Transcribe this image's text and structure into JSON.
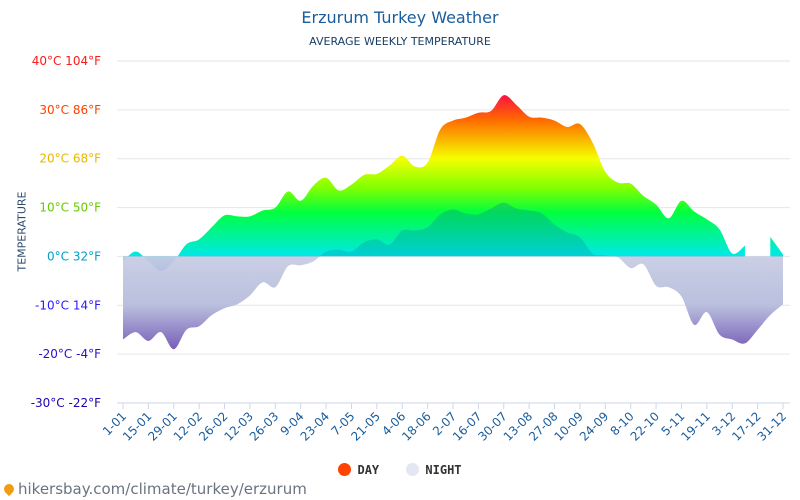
{
  "chart_data": {
    "type": "area",
    "title": "Erzurum Turkey Weather",
    "subtitle": "AVERAGE WEEKLY TEMPERATURE",
    "ylabel": "TEMPERATURE",
    "ylim": [
      -30,
      40
    ],
    "yticks": [
      {
        "value": 40,
        "label": "40°C 104°F",
        "color": "#ff1a1a"
      },
      {
        "value": 30,
        "label": "30°C 86°F",
        "color": "#ff4000"
      },
      {
        "value": 20,
        "label": "20°C 68°F",
        "color": "#e6b800"
      },
      {
        "value": 10,
        "label": "10°C 50°F",
        "color": "#66cc00"
      },
      {
        "value": 0,
        "label": "0°C 32°F",
        "color": "#00a0c8"
      },
      {
        "value": -10,
        "label": "-10°C 14°F",
        "color": "#2a1aff"
      },
      {
        "value": -20,
        "label": "-20°C -4°F",
        "color": "#2a10d0"
      },
      {
        "value": -30,
        "label": "-30°C -22°F",
        "color": "#2000b0"
      }
    ],
    "xtick_labels": [
      "1-01",
      "15-01",
      "29-01",
      "12-02",
      "26-02",
      "12-03",
      "26-03",
      "9-04",
      "23-04",
      "7-05",
      "21-05",
      "4-06",
      "18-06",
      "2-07",
      "16-07",
      "30-07",
      "13-08",
      "27-08",
      "10-09",
      "24-09",
      "8-10",
      "22-10",
      "5-11",
      "19-11",
      "3-12",
      "17-12",
      "31-12"
    ],
    "grid": true,
    "legend_placement": "bottom",
    "series": [
      {
        "name": "DAY",
        "color": "#ff4400",
        "values": [
          -1,
          1,
          -1,
          -3,
          -1,
          2.5,
          3.5,
          6,
          8.4,
          8.2,
          8.2,
          9.4,
          10,
          13.3,
          11.4,
          14.5,
          16.1,
          13.5,
          14.7,
          16.7,
          16.9,
          18.6,
          20.6,
          18.4,
          19.2,
          26,
          27.8,
          28.4,
          29.4,
          29.8,
          33,
          31,
          28.6,
          28.4,
          27.8,
          26.5,
          27.1,
          23.3,
          17.3,
          15.1,
          14.9,
          12.4,
          10.6,
          7.8,
          11.4,
          9.2,
          7.6,
          5.5,
          0.6,
          2.2,
          null,
          4,
          0.4
        ]
      },
      {
        "name": "NIGHT",
        "color": "#e3e7f3",
        "values": [
          -17,
          -15.5,
          -17.3,
          -15.5,
          -19,
          -15,
          -14.3,
          -12,
          -10.6,
          -9.8,
          -8,
          -5.3,
          -6.3,
          -2,
          -1.8,
          -1,
          1,
          1.4,
          1,
          2.9,
          3.5,
          2.4,
          5.3,
          5.3,
          6,
          8.6,
          9.6,
          8.8,
          8.6,
          9.8,
          11,
          9.8,
          9.4,
          8.8,
          6.5,
          4.9,
          3.9,
          0.6,
          0.2,
          -0.2,
          -2.4,
          -1.6,
          -6,
          -6.3,
          -8.2,
          -14,
          -11.4,
          -16,
          -17,
          -17.8,
          -15,
          -12,
          -9.8
        ]
      }
    ]
  },
  "footer": {
    "text": "hikersbay.com/climate/turkey/erzurum",
    "icon": "location-pin-icon"
  }
}
